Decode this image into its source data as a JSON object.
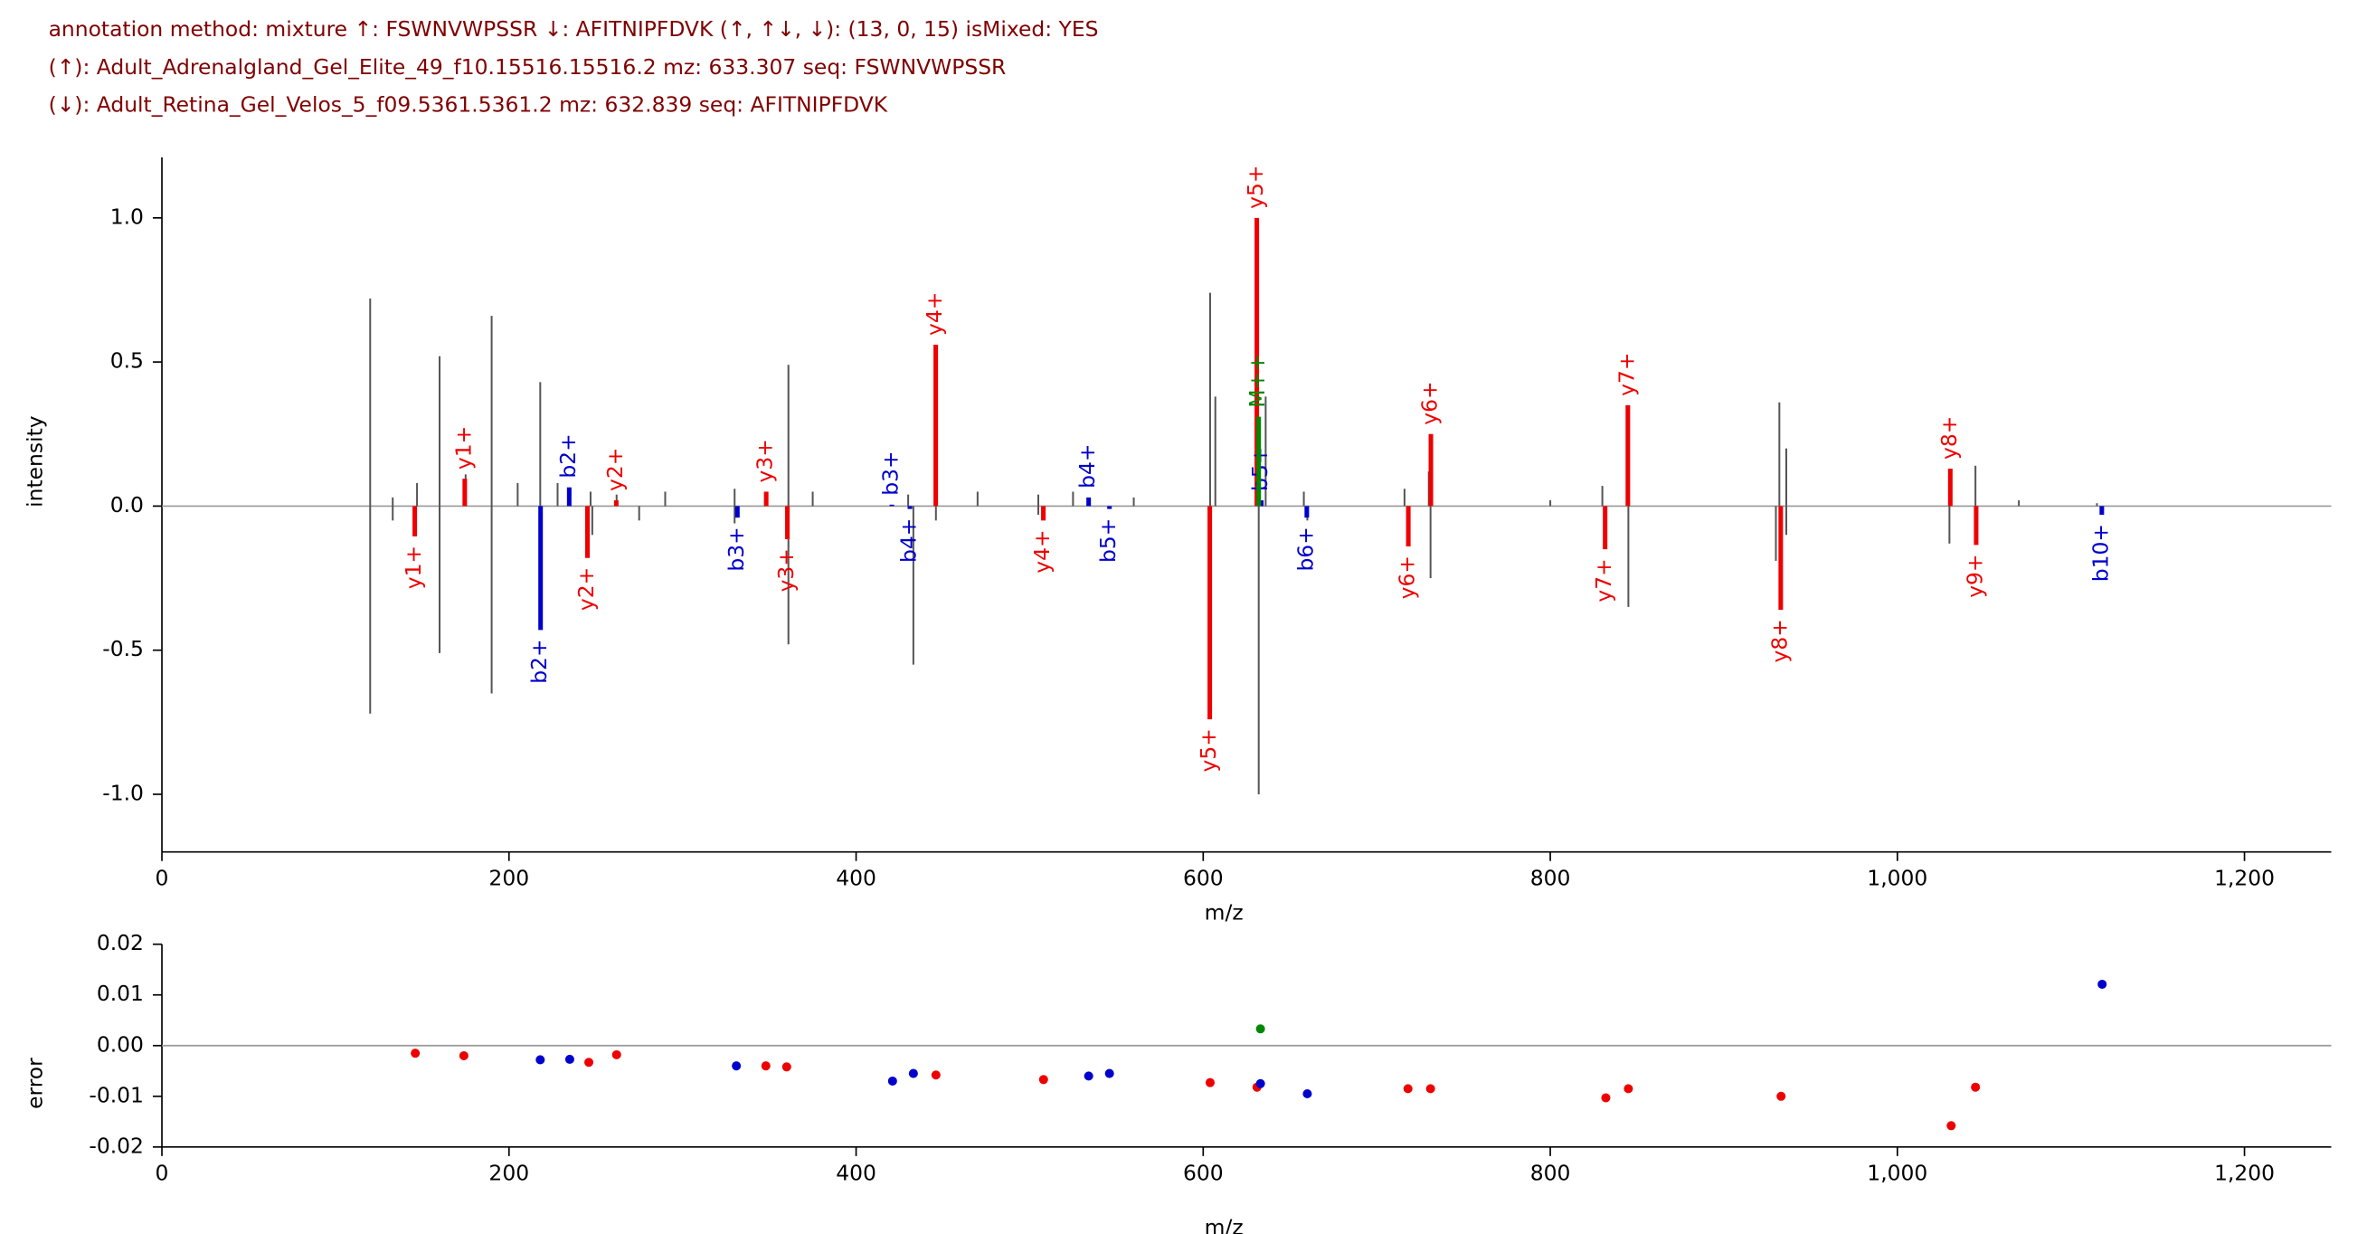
{
  "header": {
    "lines": [
      "annotation method: mixture ↑: FSWNVWPSSR ↓: AFITNIPFDVK (↑, ↑↓, ↓): (13, 0, 15) isMixed: YES",
      "(↑): Adult_Adrenalgland_Gel_Elite_49_f10.15516.15516.2 mz: 633.307 seq: FSWNVWPSSR",
      "(↓): Adult_Retina_Gel_Velos_5_f09.5361.5361.2 mz: 632.839 seq: AFITNIPFDVK"
    ]
  },
  "chart_data": [
    {
      "type": "spectrum",
      "x_label": "m/z",
      "y_label": "intensity",
      "xlim": [
        0,
        1250
      ],
      "ylim": [
        -1.2,
        1.21
      ],
      "xticks": [
        0,
        200,
        400,
        600,
        800,
        {
          "value": 1000,
          "label": "1,000"
        },
        {
          "value": 1200,
          "label": "1,200"
        }
      ],
      "yticks": [
        {
          "value": -1,
          "label": "-1.0"
        },
        {
          "value": -0.5,
          "label": "-0.5"
        },
        {
          "value": 0,
          "label": "0.0"
        },
        {
          "value": 0.5,
          "label": "0.5"
        },
        {
          "value": 1,
          "label": "1.0"
        }
      ],
      "series": [
        {
          "color": "#555555",
          "x": [
            120,
            133,
            147,
            160,
            175,
            190,
            205,
            218,
            228,
            247,
            262,
            290,
            330,
            361,
            375,
            430,
            446,
            470,
            505,
            525,
            560,
            604,
            607,
            636,
            658,
            716,
            730,
            800,
            830,
            845,
            932,
            936,
            1030,
            1045,
            1070,
            1115,
            120,
            133,
            160,
            190,
            218,
            248,
            275,
            330,
            361,
            433,
            446,
            505,
            604,
            632,
            660,
            731,
            845,
            930,
            936,
            1030,
            1045
          ],
          "values": [
            0.72,
            0.03,
            0.08,
            0.52,
            0.11,
            0.66,
            0.08,
            0.43,
            0.08,
            0.05,
            0.04,
            0.05,
            0.06,
            0.49,
            0.05,
            0.04,
            0.13,
            0.05,
            0.04,
            0.05,
            0.03,
            0.74,
            0.38,
            0.38,
            0.05,
            0.06,
            0.12,
            0.02,
            0.07,
            0.08,
            0.36,
            0.2,
            0.13,
            0.14,
            0.02,
            0.01,
            -0.72,
            -0.05,
            -0.51,
            -0.65,
            -0.42,
            -0.1,
            -0.05,
            -0.06,
            -0.48,
            -0.55,
            -0.05,
            -0.03,
            -0.37,
            -1.0,
            -0.05,
            -0.25,
            -0.35,
            -0.19,
            -0.1,
            -0.13,
            -0.07
          ]
        },
        {
          "color": "#ee0000",
          "x": [
            174.5,
            261.8,
            348.2,
            445.9,
            630.9,
            731.2,
            844.7,
            1030.5,
            145.7,
            245.2,
            360.4,
            507.9,
            603.8,
            718.2,
            831.6,
            932.8,
            1045.4
          ],
          "values": [
            0.095,
            0.02,
            0.05,
            0.56,
            1.0,
            0.25,
            0.35,
            0.13,
            -0.105,
            -0.18,
            -0.115,
            -0.05,
            -0.74,
            -0.14,
            -0.15,
            -0.36,
            -0.135
          ],
          "labels": [
            "y1+",
            "y2+",
            "y3+",
            "y4+",
            "y5+",
            "y6+",
            "y7+",
            "y8+",
            "y1+",
            "y2+",
            "y3+",
            "y4+",
            "y5+",
            "y6+",
            "y7+",
            "y8+",
            "y9+"
          ]
        },
        {
          "color": "#0000cc",
          "x": [
            234.7,
            420.6,
            534,
            633.5,
            218.2,
            331.6,
            431,
            546,
            659.7,
            1117.8
          ],
          "values": [
            0.065,
            0.005,
            0.03,
            0.02,
            -0.43,
            -0.04,
            -0.01,
            -0.01,
            -0.04,
            -0.03
          ],
          "labels": [
            "b2+",
            "b3+",
            "b4+",
            "b5+",
            "b2+",
            "b3+",
            "b4+",
            "b5+",
            "b6+",
            "b10+"
          ]
        },
        {
          "color": "#008800",
          "x": [
            632
          ],
          "values": [
            0.31
          ],
          "labels": [
            "M++"
          ]
        }
      ]
    },
    {
      "type": "scatter",
      "x_label": "m/z",
      "y_label": "error",
      "xlim": [
        0,
        1250
      ],
      "ylim": [
        -0.02,
        0.02
      ],
      "xticks": [
        0,
        200,
        400,
        600,
        800,
        {
          "value": 1000,
          "label": "1,000"
        },
        {
          "value": 1200,
          "label": "1,200"
        }
      ],
      "yticks": [
        {
          "value": -0.02,
          "label": "-0.02"
        },
        {
          "value": -0.01,
          "label": "-0.01"
        },
        {
          "value": 0,
          "label": "0.00"
        },
        {
          "value": 0.01,
          "label": "0.01"
        },
        {
          "value": 0.02,
          "label": "0.02"
        }
      ],
      "series": [
        {
          "color": "#ee0000",
          "x": [
            146,
            174,
            246,
            262,
            348,
            360,
            446,
            508,
            604,
            631,
            718,
            731,
            832,
            845,
            933,
            1031,
            1045
          ],
          "values": [
            -0.0015,
            -0.002,
            -0.0033,
            -0.0018,
            -0.004,
            -0.0042,
            -0.0058,
            -0.0067,
            -0.0073,
            -0.0082,
            -0.0085,
            -0.0085,
            -0.0103,
            -0.0085,
            -0.01,
            -0.0158,
            -0.0082
          ]
        },
        {
          "color": "#0000cc",
          "x": [
            218,
            235,
            331,
            421,
            433,
            534,
            546,
            633,
            660,
            1118
          ],
          "values": [
            -0.0028,
            -0.0027,
            -0.004,
            -0.007,
            -0.0055,
            -0.006,
            -0.0055,
            -0.0075,
            -0.0095,
            0.0121
          ]
        },
        {
          "color": "#008800",
          "x": [
            633
          ],
          "values": [
            0.0033
          ]
        }
      ]
    }
  ]
}
